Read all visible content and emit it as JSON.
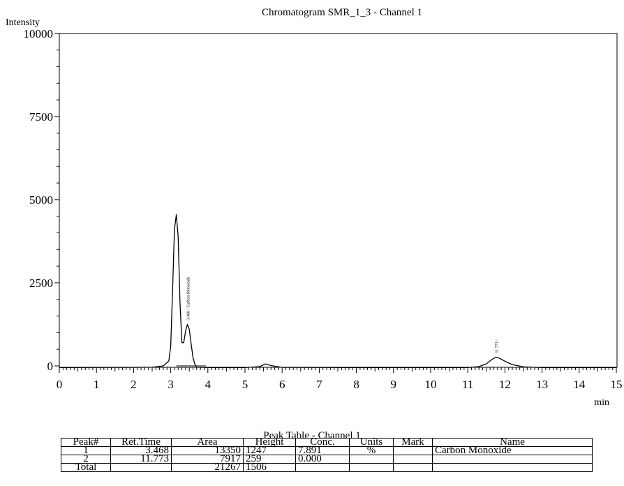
{
  "chart_data": {
    "type": "line",
    "title": "Chromatogram SMR_1_3 - Channel 1",
    "ylabel": "Intensity",
    "xlabel": "min",
    "xlim": [
      0,
      15
    ],
    "ylim": [
      0,
      10000
    ],
    "yticks": [
      0,
      2500,
      5000,
      7500,
      10000
    ],
    "xticks": [
      0,
      1,
      2,
      3,
      4,
      5,
      6,
      7,
      8,
      9,
      10,
      11,
      12,
      13,
      14,
      15
    ],
    "grid": false,
    "series": [
      {
        "x": [
          0,
          2.0,
          2.5,
          2.8,
          2.95,
          3.0,
          3.05,
          3.1,
          3.15,
          3.2,
          3.25,
          3.3,
          3.35,
          3.4,
          3.45,
          3.5,
          3.55,
          3.6,
          3.65,
          3.7,
          4.0,
          5.0,
          5.4,
          5.55,
          5.7,
          6.0,
          8.0,
          10.0,
          11.0,
          11.3,
          11.5,
          11.6,
          11.7,
          11.773,
          11.85,
          12.0,
          12.2,
          12.5,
          13.0,
          14.0,
          15.0
        ],
        "y": [
          -50,
          -45,
          -40,
          0,
          150,
          600,
          2300,
          4100,
          4550,
          3900,
          1900,
          700,
          700,
          1050,
          1247,
          1100,
          650,
          250,
          50,
          -40,
          -50,
          -50,
          -20,
          60,
          10,
          -45,
          -50,
          -50,
          -50,
          -20,
          60,
          150,
          230,
          259,
          230,
          140,
          40,
          -30,
          -50,
          -50,
          -50
        ]
      }
    ],
    "annotations": [
      {
        "x": 3.468,
        "y": 1247,
        "text": "3.468 / Carbon Monoxide"
      },
      {
        "x": 11.773,
        "y": 259,
        "text": "11.773 /"
      }
    ],
    "baseline": {
      "x1": 3.15,
      "x2": 3.95,
      "y": 0
    }
  },
  "peak_table": {
    "title": "Peak Table - Channel 1",
    "columns": [
      "Peak#",
      "Ret.Time",
      "Area",
      "Height",
      "Conc.",
      "Units",
      "Mark",
      "Name"
    ],
    "rows": [
      [
        "1",
        "3.468",
        "13350",
        "1247",
        "7.891",
        "%",
        "",
        "Carbon Monoxide"
      ],
      [
        "2",
        "11.773",
        "7917",
        "259",
        "0.000",
        "",
        "",
        ""
      ],
      [
        "Total",
        "",
        "21267",
        "1506",
        "",
        "",
        "",
        ""
      ]
    ]
  }
}
